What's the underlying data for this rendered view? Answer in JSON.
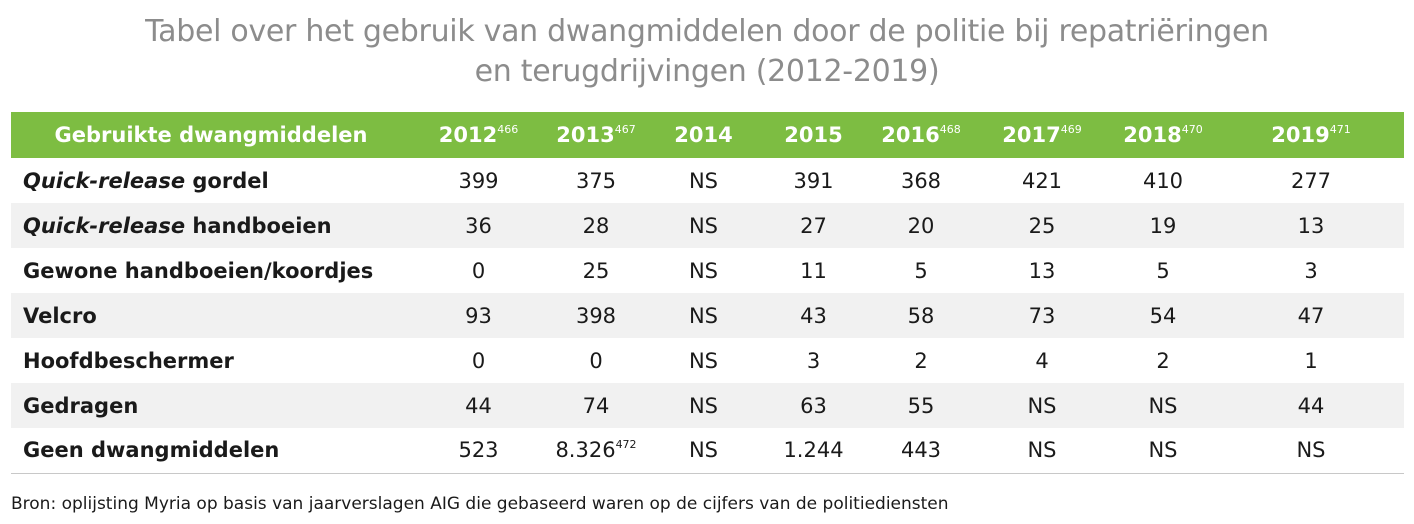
{
  "title": {
    "line1": "Tabel over het gebruik van dwangmiddelen door de politie bij repatriëringen",
    "line2": "en terugdrijvingen (2012-2019)"
  },
  "header": {
    "label": "Gebruikte dwangmiddelen",
    "years": [
      {
        "year": "2012",
        "note": "466"
      },
      {
        "year": "2013",
        "note": "467"
      },
      {
        "year": "2014",
        "note": ""
      },
      {
        "year": "2015",
        "note": ""
      },
      {
        "year": "2016",
        "note": "468"
      },
      {
        "year": "2017",
        "note": "469"
      },
      {
        "year": "2018",
        "note": "470"
      },
      {
        "year": "2019",
        "note": "471"
      }
    ]
  },
  "rows": [
    {
      "italic": "Quick-release",
      "label": " gordel",
      "values": [
        "399",
        "375",
        "NS",
        "391",
        "368",
        "421",
        "410",
        "277"
      ]
    },
    {
      "italic": "Quick-release",
      "label": " handboeien",
      "values": [
        "36",
        "28",
        "NS",
        "27",
        "20",
        "25",
        "19",
        "13"
      ]
    },
    {
      "italic": "",
      "label": "Gewone handboeien/koordjes",
      "values": [
        "0",
        "25",
        "NS",
        "11",
        "5",
        "13",
        "5",
        "3"
      ]
    },
    {
      "italic": "",
      "label": "Velcro",
      "values": [
        "93",
        "398",
        "NS",
        "43",
        "58",
        "73",
        "54",
        "47"
      ]
    },
    {
      "italic": "",
      "label": "Hoofdbeschermer",
      "values": [
        "0",
        "0",
        "NS",
        "3",
        "2",
        "4",
        "2",
        "1"
      ]
    },
    {
      "italic": "",
      "label": "Gedragen",
      "values": [
        "44",
        "74",
        "NS",
        "63",
        "55",
        "NS",
        "NS",
        "44"
      ]
    },
    {
      "italic": "",
      "label": "Geen dwangmiddelen",
      "values": [
        "523",
        "8.326",
        "NS",
        "1.244",
        "443",
        "NS",
        "NS",
        "NS"
      ],
      "notes": [
        "",
        "472",
        "",
        "",
        "",
        "",
        "",
        ""
      ]
    }
  ],
  "source": "Bron: oplijsting Myria op basis van jaarverslagen AIG die gebaseerd waren op de cijfers van de politiediensten",
  "colors": {
    "header_bg": "#7dbd42",
    "stripe": "#f1f1f1",
    "title": "#8c8c8c"
  }
}
